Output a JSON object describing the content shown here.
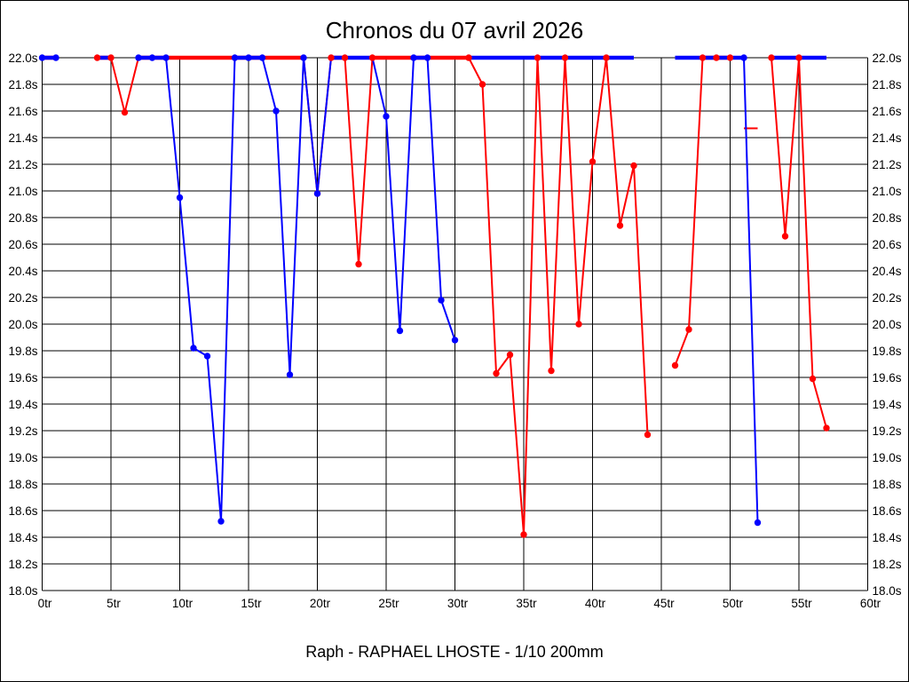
{
  "page": {
    "background": "#ffffff",
    "border_color": "#000000",
    "grid_color": "#000000"
  },
  "chart_data": {
    "type": "line",
    "title": "Chronos du 07 avril 2026",
    "subtitle": "Raph - RAPHAEL LHOSTE - 1/10 200mm",
    "grid": true,
    "legend": "none",
    "cap_value": 22.0,
    "x_axis": {
      "unit": "tr",
      "min": 0,
      "max": 60,
      "tick_values": [
        0,
        5,
        10,
        15,
        20,
        25,
        30,
        35,
        40,
        45,
        50,
        55,
        60
      ],
      "tick_labels": [
        "0tr",
        "5tr",
        "10tr",
        "15tr",
        "20tr",
        "25tr",
        "30tr",
        "35tr",
        "40tr",
        "45tr",
        "50tr",
        "55tr",
        "60tr"
      ]
    },
    "y_axis": {
      "unit": "s",
      "min": 18.0,
      "max": 22.0,
      "tick_step": 0.2,
      "labels_on_both_sides": true,
      "tick_values": [
        18.0,
        18.2,
        18.4,
        18.6,
        18.8,
        19.0,
        19.2,
        19.4,
        19.6,
        19.8,
        20.0,
        20.2,
        20.4,
        20.6,
        20.8,
        21.0,
        21.2,
        21.4,
        21.6,
        21.8,
        22.0
      ],
      "tick_labels": [
        "18.0s",
        "18.2s",
        "18.4s",
        "18.6s",
        "18.8s",
        "19.0s",
        "19.2s",
        "19.4s",
        "19.6s",
        "19.8s",
        "20.0s",
        "20.2s",
        "20.4s",
        "20.6s",
        "20.8s",
        "21.0s",
        "21.2s",
        "21.4s",
        "21.6s",
        "21.8s",
        "22.0s"
      ]
    },
    "series": [
      {
        "name": "red-driver",
        "color": "#ff0000",
        "segments": [
          [
            [
              0,
              22
            ],
            [
              1,
              22
            ]
          ],
          [
            [
              4,
              22
            ],
            [
              5,
              22
            ],
            [
              6,
              21.59
            ],
            [
              7,
              22
            ],
            [
              8,
              22
            ],
            [
              9,
              22
            ],
            [
              10,
              22
            ],
            [
              11,
              22
            ],
            [
              12,
              22
            ],
            [
              13,
              22
            ],
            [
              14,
              22
            ],
            [
              15,
              22
            ],
            [
              16,
              22
            ],
            [
              17,
              22
            ],
            [
              18,
              22
            ],
            [
              19,
              22
            ],
            [
              20,
              20.98
            ],
            [
              21,
              22
            ],
            [
              22,
              22
            ],
            [
              23,
              20.45
            ],
            [
              24,
              22
            ],
            [
              25,
              22
            ],
            [
              26,
              22
            ],
            [
              27,
              22
            ],
            [
              28,
              22
            ],
            [
              29,
              22
            ],
            [
              30,
              22
            ],
            [
              31,
              22
            ],
            [
              32,
              21.8
            ],
            [
              33,
              19.63
            ],
            [
              34,
              19.77
            ],
            [
              35,
              18.42
            ],
            [
              36,
              22
            ],
            [
              37,
              19.65
            ],
            [
              38,
              22
            ],
            [
              39,
              20.0
            ],
            [
              40,
              21.22
            ],
            [
              41,
              22
            ],
            [
              42,
              20.74
            ],
            [
              43,
              21.19
            ],
            [
              44,
              19.17
            ]
          ],
          [
            [
              46,
              19.69
            ],
            [
              47,
              19.96
            ],
            [
              48,
              22
            ],
            [
              49,
              22
            ],
            [
              50,
              22
            ]
          ],
          [
            [
              51,
              21.47
            ],
            [
              52,
              21.47
            ]
          ],
          [
            [
              53,
              22
            ],
            [
              54,
              20.66
            ],
            [
              55,
              22
            ],
            [
              56,
              19.59
            ],
            [
              57,
              19.22
            ]
          ]
        ],
        "marker_laps": [
          4,
          5,
          6,
          20,
          21,
          22,
          23,
          24,
          31,
          32,
          33,
          34,
          35,
          36,
          37,
          38,
          39,
          40,
          41,
          42,
          43,
          44,
          46,
          47,
          48,
          49,
          50,
          53,
          54,
          55,
          56,
          57
        ]
      },
      {
        "name": "blue-driver",
        "color": "#0000ff",
        "segments": [
          [
            [
              0,
              22
            ],
            [
              1,
              22
            ]
          ],
          [
            [
              4,
              22
            ],
            [
              5,
              22
            ]
          ],
          [
            [
              7,
              22
            ],
            [
              8,
              22
            ],
            [
              9,
              22
            ],
            [
              10,
              20.95
            ],
            [
              11,
              19.82
            ],
            [
              12,
              19.76
            ],
            [
              13,
              18.52
            ],
            [
              14,
              22
            ],
            [
              15,
              22
            ],
            [
              16,
              22
            ],
            [
              17,
              21.6
            ],
            [
              18,
              19.62
            ],
            [
              19,
              22
            ],
            [
              20,
              20.98
            ],
            [
              21,
              22
            ],
            [
              22,
              22
            ],
            [
              23,
              22
            ],
            [
              24,
              22
            ],
            [
              25,
              21.56
            ],
            [
              26,
              19.95
            ],
            [
              27,
              22
            ],
            [
              28,
              22
            ],
            [
              29,
              20.18
            ],
            [
              30,
              19.88
            ]
          ],
          [
            [
              31,
              22
            ],
            [
              32,
              22
            ],
            [
              33,
              22
            ],
            [
              34,
              22
            ],
            [
              35,
              22
            ],
            [
              36,
              22
            ],
            [
              37,
              22
            ],
            [
              38,
              22
            ],
            [
              39,
              22
            ],
            [
              40,
              22
            ],
            [
              41,
              22
            ],
            [
              42,
              22
            ],
            [
              43,
              22
            ]
          ],
          [
            [
              46,
              22
            ],
            [
              47,
              22
            ],
            [
              48,
              22
            ],
            [
              49,
              22
            ],
            [
              50,
              22
            ],
            [
              51,
              22
            ],
            [
              52,
              18.51
            ]
          ],
          [
            [
              53,
              22
            ],
            [
              54,
              22
            ],
            [
              55,
              22
            ],
            [
              56,
              22
            ],
            [
              57,
              22
            ]
          ]
        ],
        "marker_laps": [
          0,
          1,
          7,
          8,
          9,
          10,
          11,
          12,
          13,
          14,
          15,
          16,
          17,
          18,
          19,
          20,
          25,
          26,
          27,
          28,
          29,
          30,
          51,
          52
        ]
      }
    ]
  }
}
